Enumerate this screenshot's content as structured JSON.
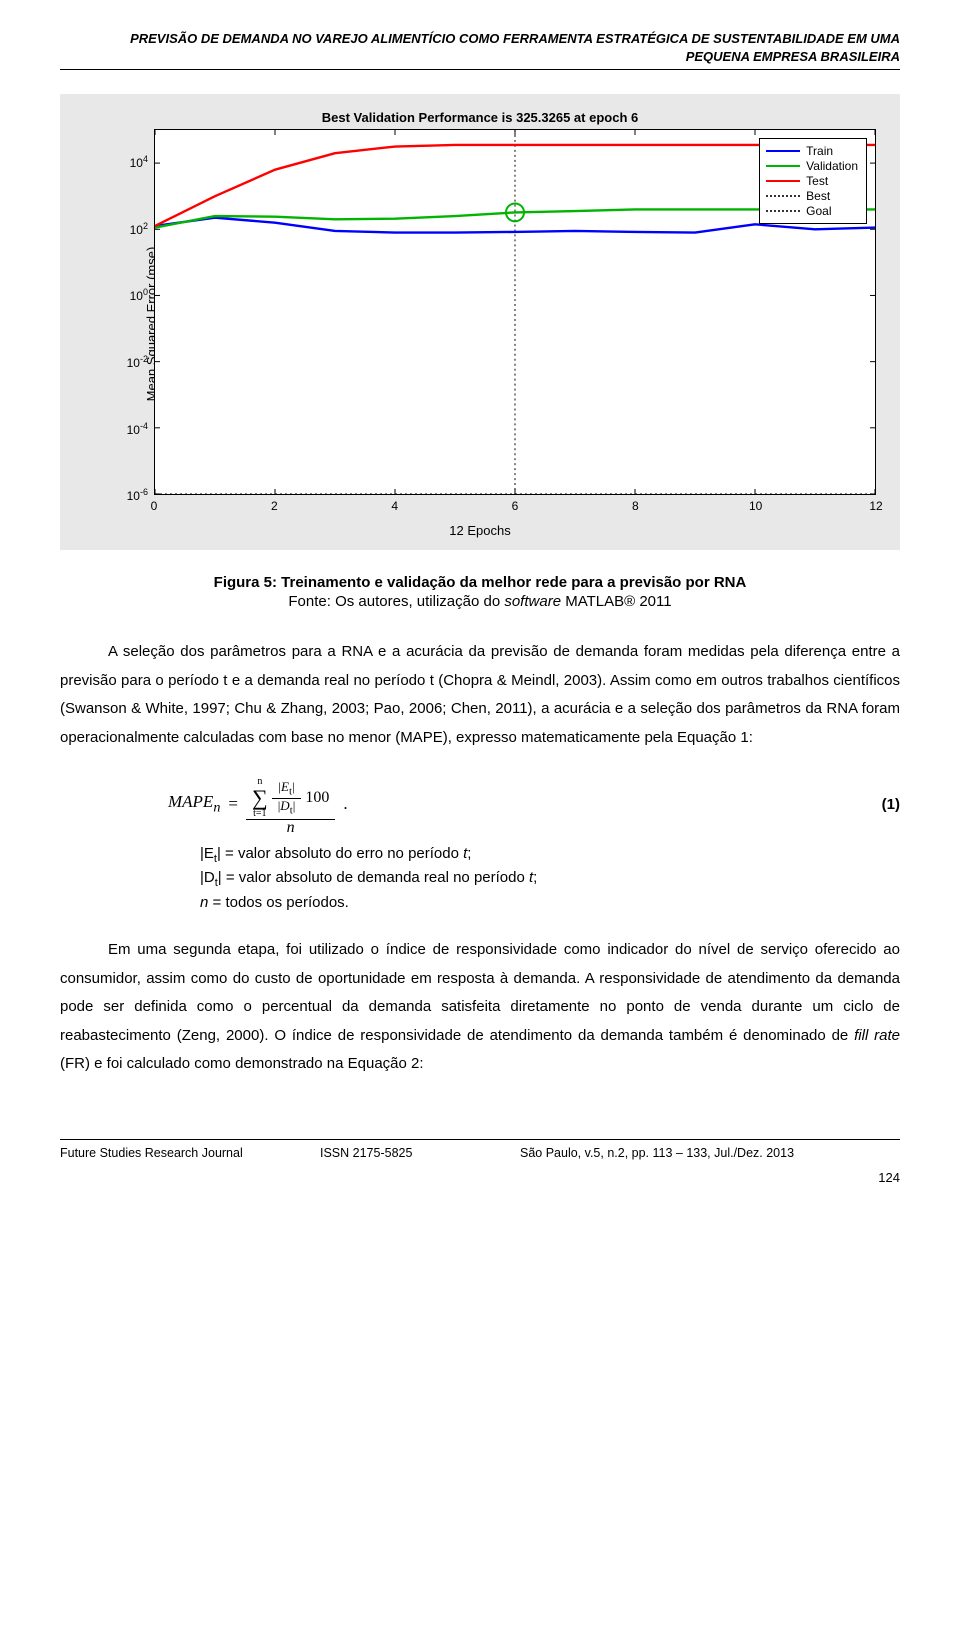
{
  "header": {
    "line1": "PREVISÃO DE DEMANDA NO VAREJO ALIMENTÍCIO COMO FERRAMENTA ESTRATÉGICA DE SUSTENTABILIDADE EM UMA",
    "line2": "PEQUENA EMPRESA BRASILEIRA"
  },
  "chart": {
    "type": "line",
    "title": "Best Validation Performance is 325.3265 at epoch 6",
    "xlabel": "12 Epochs",
    "ylabel": "Mean Squared Error  (mse)",
    "xlim": [
      0,
      12
    ],
    "ylim_log10": [
      -6,
      5
    ],
    "xticks": [
      0,
      2,
      4,
      6,
      8,
      10,
      12
    ],
    "yticks_exp": [
      -6,
      -4,
      -2,
      0,
      2,
      4
    ],
    "background_color": "#e8e8e8",
    "plot_bg": "#ffffff",
    "axis_color": "#000000",
    "title_fontsize": 13,
    "label_fontsize": 13,
    "tick_fontsize": 12,
    "line_width_main": 2.4,
    "line_width_ref": 1.8,
    "legend": {
      "position": "top-right-inside",
      "border_color": "#000000",
      "items": [
        {
          "label": "Train",
          "color": "#0000ff",
          "style": "solid"
        },
        {
          "label": "Validation",
          "color": "#00b400",
          "style": "solid"
        },
        {
          "label": "Test",
          "color": "#ff0000",
          "style": "solid"
        },
        {
          "label": "Best",
          "color": "#333333",
          "style": "dotted"
        },
        {
          "label": "Goal",
          "color": "#333333",
          "style": "dotted"
        }
      ]
    },
    "series": {
      "train": {
        "color": "#0000ff",
        "points_log10": [
          [
            0,
            2.1
          ],
          [
            1,
            2.35
          ],
          [
            2,
            2.2
          ],
          [
            3,
            1.95
          ],
          [
            4,
            1.9
          ],
          [
            5,
            1.9
          ],
          [
            6,
            1.92
          ],
          [
            7,
            1.95
          ],
          [
            8,
            1.92
          ],
          [
            9,
            1.9
          ],
          [
            10,
            2.15
          ],
          [
            11,
            2.0
          ],
          [
            12,
            2.05
          ]
        ]
      },
      "validation": {
        "color": "#00b400",
        "points_log10": [
          [
            0,
            2.05
          ],
          [
            1,
            2.4
          ],
          [
            2,
            2.38
          ],
          [
            3,
            2.3
          ],
          [
            4,
            2.32
          ],
          [
            5,
            2.4
          ],
          [
            6,
            2.51
          ],
          [
            7,
            2.55
          ],
          [
            8,
            2.6
          ],
          [
            9,
            2.6
          ],
          [
            10,
            2.6
          ],
          [
            11,
            2.6
          ],
          [
            12,
            2.6
          ]
        ]
      },
      "test": {
        "color": "#ff0000",
        "points_log10": [
          [
            0,
            2.1
          ],
          [
            1,
            3.0
          ],
          [
            2,
            3.8
          ],
          [
            3,
            4.3
          ],
          [
            4,
            4.5
          ],
          [
            5,
            4.55
          ],
          [
            6,
            4.55
          ],
          [
            7,
            4.55
          ],
          [
            8,
            4.55
          ],
          [
            9,
            4.55
          ],
          [
            10,
            4.55
          ],
          [
            11,
            4.55
          ],
          [
            12,
            4.55
          ]
        ]
      }
    },
    "best_epoch": 6,
    "best_value_log10": 2.51,
    "best_marker": {
      "color": "#00b400",
      "radius": 9,
      "stroke_width": 2
    },
    "best_line_color": "#333333",
    "goal_line_log10": -6,
    "goal_line_color": "#333333"
  },
  "figure_caption": "Figura 5: Treinamento e validação da melhor rede para a previsão por RNA",
  "figure_source_prefix": "Fonte: Os autores, utilização do ",
  "figure_source_software": "software",
  "figure_source_suffix": " MATLAB® 2011",
  "paragraph1": "A seleção dos parâmetros para a RNA e a acurácia da previsão de demanda foram medidas pela diferença entre a previsão para o período t e a demanda real no período t (Chopra & Meindl, 2003). Assim como em outros trabalhos científicos (Swanson & White, 1997; Chu & Zhang, 2003; Pao, 2006; Chen, 2011), a acurácia e a seleção dos parâmetros da RNA foram operacionalmente calculadas com base no menor (MAPE), expresso matematicamente pela Equação 1:",
  "equation1": {
    "lhs": "MAPE",
    "lhs_sub": "n",
    "eq": "=",
    "sum_upper": "n",
    "sum_lower": "t=1",
    "inner_num": "E",
    "inner_num_sub": "t",
    "inner_den": "D",
    "inner_den_sub": "t",
    "times100": "100",
    "outer_den": "n",
    "dot": ".",
    "number_label": "(1)"
  },
  "where_lines": {
    "l1a": "|E",
    "l1sub": "t",
    "l1b": "| = valor absoluto do erro no período ",
    "l1it": "t",
    "l1c": ";",
    "l2a": "|D",
    "l2sub": "t",
    "l2b": "| = valor absoluto de demanda real no período ",
    "l2it": "t",
    "l2c": ";",
    "l3a": "n",
    "l3b": " = todos os períodos."
  },
  "paragraph2": "Em uma segunda etapa, foi utilizado o índice de responsividade como indicador do nível de serviço oferecido ao consumidor, assim como do custo de oportunidade em resposta à demanda. A responsividade de atendimento da demanda pode ser definida como o percentual da demanda satisfeita diretamente no ponto de venda durante um ciclo de reabastecimento (Zeng, 2000). O índice de responsividade de atendimento da demanda também é denominado de ",
  "paragraph2_italic": "fill rate",
  "paragraph2_tail": " (FR) e foi calculado como demonstrado na Equação 2:",
  "footer": {
    "c1": "Future Studies Research Journal",
    "c2": "ISSN 2175-5825",
    "c3": "São Paulo, v.5, n.2, pp. 113 – 133, Jul./Dez. 2013",
    "page": "124"
  }
}
